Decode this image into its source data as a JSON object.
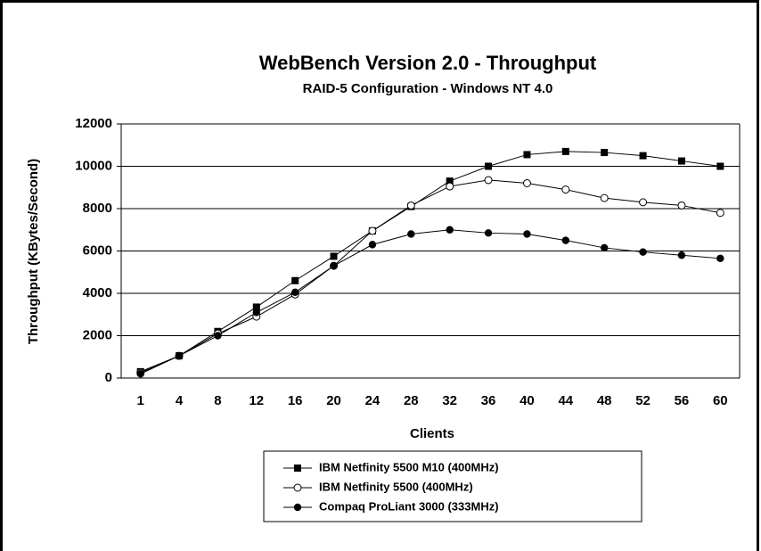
{
  "chart_data": {
    "type": "line",
    "title": "WebBench Version 2.0 - Throughput",
    "subtitle": "RAID-5 Configuration - Windows NT 4.0",
    "x_label": "Clients",
    "y_label": "Throughput  (KBytes/Second)",
    "categories": [
      "1",
      "4",
      "8",
      "12",
      "16",
      "20",
      "24",
      "28",
      "32",
      "36",
      "40",
      "44",
      "48",
      "52",
      "56",
      "60"
    ],
    "ylim": [
      0,
      12000
    ],
    "yticks": [
      0,
      2000,
      4000,
      6000,
      8000,
      10000,
      12000
    ],
    "grid": true,
    "legend": "bottom",
    "series": [
      {
        "name": "IBM Netfinity 5500 M10 (400MHz)",
        "color": "#000000",
        "marker": "square",
        "values": [
          300,
          1050,
          2200,
          3350,
          4600,
          5750,
          6950,
          8100,
          9300,
          10000,
          10550,
          10700,
          10650,
          10500,
          10250,
          10000
        ]
      },
      {
        "name": "IBM Netfinity 5500 (400MHz)",
        "color": "#000000",
        "marker": "circle-open",
        "values": [
          250,
          1050,
          2100,
          2900,
          3950,
          5300,
          6950,
          8150,
          9050,
          9350,
          9200,
          8900,
          8500,
          8300,
          8150,
          7800
        ]
      },
      {
        "name": "Compaq ProLiant 3000 (333MHz)",
        "color": "#000000",
        "marker": "circle",
        "values": [
          200,
          1050,
          2000,
          3100,
          4050,
          5300,
          6300,
          6800,
          7000,
          6850,
          6800,
          6500,
          6150,
          5950,
          5800,
          5650
        ]
      }
    ]
  }
}
